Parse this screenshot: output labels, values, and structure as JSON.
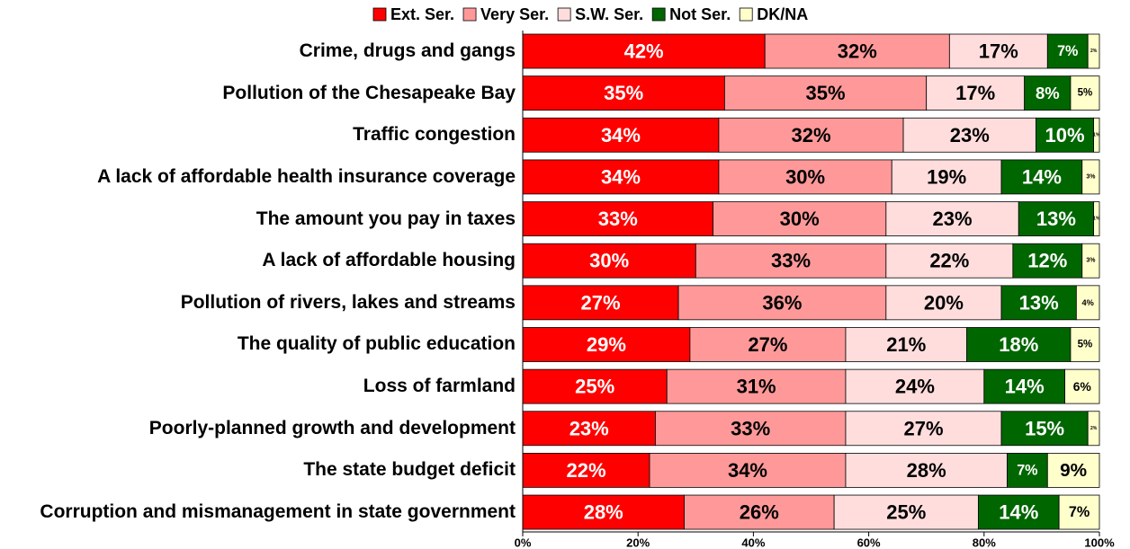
{
  "chart_data": {
    "type": "stacked-bar-horizontal",
    "categories": [
      "Crime, drugs and gangs",
      "Pollution of the Chesapeake Bay",
      "Traffic congestion",
      "A lack of affordable health insurance coverage",
      "The amount you pay in taxes",
      "A lack of affordable housing",
      "Pollution of rivers, lakes and streams",
      "The quality of public education",
      "Loss of farmland",
      "Poorly-planned growth and development",
      "The state budget deficit",
      "Corruption and mismanagement in state government"
    ],
    "series": [
      {
        "name": "Ext. Ser.",
        "color": "#ff0000",
        "label_color": "#ffffff",
        "values": [
          42,
          35,
          34,
          34,
          33,
          30,
          27,
          29,
          25,
          23,
          22,
          28
        ],
        "value_labels": [
          "42%",
          "35%",
          "34%",
          "34%",
          "33%",
          "30%",
          "27%",
          "29%",
          "25%",
          "23%",
          "22%",
          "28%"
        ]
      },
      {
        "name": "Very Ser.",
        "color": "#ff9999",
        "label_color": "#000000",
        "values": [
          32,
          35,
          32,
          30,
          30,
          33,
          36,
          27,
          31,
          33,
          34,
          26
        ],
        "value_labels": [
          "32%",
          "35%",
          "32%",
          "30%",
          "30%",
          "33%",
          "36%",
          "27%",
          "31%",
          "33%",
          "34%",
          "26%"
        ]
      },
      {
        "name": "S.W. Ser.",
        "color": "#ffdddd",
        "label_color": "#000000",
        "values": [
          17,
          17,
          23,
          19,
          23,
          22,
          20,
          21,
          24,
          27,
          28,
          25
        ],
        "value_labels": [
          "17%",
          "17%",
          "23%",
          "19%",
          "23%",
          "22%",
          "20%",
          "21%",
          "24%",
          "27%",
          "28%",
          "25%"
        ]
      },
      {
        "name": "Not Ser.",
        "color": "#006600",
        "label_color": "#ffffff",
        "values": [
          7,
          8,
          10,
          14,
          13,
          12,
          13,
          18,
          14,
          15,
          7,
          14
        ],
        "value_labels": [
          "7%",
          "8%",
          "10%",
          "14%",
          "13%",
          "12%",
          "13%",
          "18%",
          "14%",
          "15%",
          "7%",
          "14%"
        ]
      },
      {
        "name": "DK/NA",
        "color": "#ffffcc",
        "label_color": "#000000",
        "values": [
          2,
          5,
          1,
          3,
          1,
          3,
          4,
          5,
          6,
          2,
          9,
          7
        ],
        "value_labels": [
          "2%",
          "5%",
          "1%",
          "3%",
          "1%",
          "3%",
          "4%",
          "5%",
          "6%",
          "2%",
          "9%",
          "7%"
        ]
      }
    ],
    "xlim": [
      0,
      100
    ],
    "xticks": [
      {
        "value": 0,
        "label": "0%"
      },
      {
        "value": 20,
        "label": "20%"
      },
      {
        "value": 40,
        "label": "40%"
      },
      {
        "value": 60,
        "label": "60%"
      },
      {
        "value": 80,
        "label": "80%"
      },
      {
        "value": 100,
        "label": "100%"
      }
    ],
    "legend": "top"
  }
}
